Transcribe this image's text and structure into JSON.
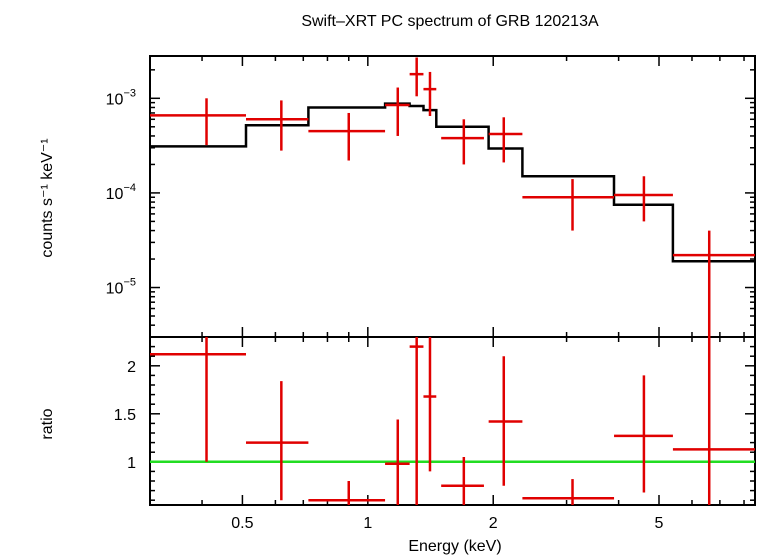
{
  "chart_data": {
    "type": "scatter",
    "title": "Swift–XRT PC spectrum of GRB 120213A",
    "xlabel": "Energy (keV)",
    "x_scale": "log",
    "xlim": [
      0.3,
      8.5
    ],
    "x_ticks": [
      {
        "value": 0.5,
        "label": "0.5"
      },
      {
        "value": 1,
        "label": "1"
      },
      {
        "value": 2,
        "label": "2"
      },
      {
        "value": 5,
        "label": "5"
      }
    ],
    "panels": [
      {
        "id": "spectrum",
        "ylabel": "counts s⁻¹ keV⁻¹",
        "y_scale": "log",
        "ylim": [
          3e-06,
          0.0028
        ],
        "y_ticks": [
          {
            "value": 0.001,
            "base": "10",
            "exp": "−3"
          },
          {
            "value": 0.0001,
            "base": "10",
            "exp": "−4"
          },
          {
            "value": 1e-05,
            "base": "10",
            "exp": "−5"
          }
        ],
        "data": [
          {
            "x": 0.41,
            "xlo": 0.3,
            "xhi": 0.51,
            "y": 0.00066,
            "ylo": 0.00032,
            "yhi": 0.001
          },
          {
            "x": 0.62,
            "xlo": 0.51,
            "xhi": 0.72,
            "y": 0.0006,
            "ylo": 0.00028,
            "yhi": 0.00095
          },
          {
            "x": 0.9,
            "xlo": 0.72,
            "xhi": 1.1,
            "y": 0.00045,
            "ylo": 0.00022,
            "yhi": 0.0007
          },
          {
            "x": 1.18,
            "xlo": 1.1,
            "xhi": 1.26,
            "y": 0.00085,
            "ylo": 0.0004,
            "yhi": 0.0013
          },
          {
            "x": 1.31,
            "xlo": 1.26,
            "xhi": 1.36,
            "y": 0.0018,
            "ylo": 0.00105,
            "yhi": 0.0027
          },
          {
            "x": 1.41,
            "xlo": 1.36,
            "xhi": 1.46,
            "y": 0.00125,
            "ylo": 0.00065,
            "yhi": 0.0019
          },
          {
            "x": 1.7,
            "xlo": 1.5,
            "xhi": 1.9,
            "y": 0.00038,
            "ylo": 0.0002,
            "yhi": 0.0006
          },
          {
            "x": 2.12,
            "xlo": 1.95,
            "xhi": 2.35,
            "y": 0.00042,
            "ylo": 0.00021,
            "yhi": 0.00063
          },
          {
            "x": 3.1,
            "xlo": 2.35,
            "xhi": 3.9,
            "y": 9e-05,
            "ylo": 4e-05,
            "yhi": 0.00014
          },
          {
            "x": 4.6,
            "xlo": 3.9,
            "xhi": 5.4,
            "y": 9.5e-05,
            "ylo": 5e-05,
            "yhi": 0.00015
          },
          {
            "x": 6.6,
            "xlo": 5.4,
            "xhi": 8.5,
            "y": 2.2e-05,
            "ylo": 2.6e-06,
            "yhi": 4e-05
          }
        ],
        "model": [
          {
            "x0": 0.3,
            "x1": 0.51,
            "y": 0.00031
          },
          {
            "x0": 0.51,
            "x1": 0.72,
            "y": 0.00052
          },
          {
            "x0": 0.72,
            "x1": 1.1,
            "y": 0.0008
          },
          {
            "x0": 1.1,
            "x1": 1.26,
            "y": 0.00088
          },
          {
            "x0": 1.26,
            "x1": 1.36,
            "y": 0.00083
          },
          {
            "x0": 1.36,
            "x1": 1.46,
            "y": 0.00075
          },
          {
            "x0": 1.46,
            "x1": 1.95,
            "y": 0.0005
          },
          {
            "x0": 1.95,
            "x1": 2.35,
            "y": 0.000295
          },
          {
            "x0": 2.35,
            "x1": 3.9,
            "y": 0.00015
          },
          {
            "x0": 3.9,
            "x1": 5.4,
            "y": 7.5e-05
          },
          {
            "x0": 5.4,
            "x1": 8.5,
            "y": 1.9e-05
          }
        ]
      },
      {
        "id": "ratio",
        "ylabel": "ratio",
        "y_scale": "linear",
        "ylim": [
          0.55,
          2.3
        ],
        "y_ticks": [
          {
            "value": 1,
            "label": "1"
          },
          {
            "value": 1.5,
            "label": "1.5"
          },
          {
            "value": 2,
            "label": "2"
          }
        ],
        "reference_line": 1,
        "data": [
          {
            "x": 0.41,
            "xlo": 0.3,
            "xhi": 0.51,
            "y": 2.12,
            "ylo": 1.0,
            "yhi": 2.3
          },
          {
            "x": 0.62,
            "xlo": 0.51,
            "xhi": 0.72,
            "y": 1.2,
            "ylo": 0.6,
            "yhi": 1.84
          },
          {
            "x": 0.9,
            "xlo": 0.72,
            "xhi": 1.1,
            "y": 0.6,
            "ylo": 0.55,
            "yhi": 0.8
          },
          {
            "x": 1.18,
            "xlo": 1.1,
            "xhi": 1.26,
            "y": 0.98,
            "ylo": 0.55,
            "yhi": 1.44
          },
          {
            "x": 1.31,
            "xlo": 1.26,
            "xhi": 1.36,
            "y": 2.2,
            "ylo": 0.55,
            "yhi": 2.3
          },
          {
            "x": 1.41,
            "xlo": 1.36,
            "xhi": 1.46,
            "y": 1.68,
            "ylo": 0.9,
            "yhi": 2.3
          },
          {
            "x": 1.7,
            "xlo": 1.5,
            "xhi": 1.9,
            "y": 0.75,
            "ylo": 0.55,
            "yhi": 1.05
          },
          {
            "x": 2.12,
            "xlo": 1.95,
            "xhi": 2.35,
            "y": 1.42,
            "ylo": 0.75,
            "yhi": 2.1
          },
          {
            "x": 3.1,
            "xlo": 2.35,
            "xhi": 3.9,
            "y": 0.62,
            "ylo": 0.55,
            "yhi": 0.82
          },
          {
            "x": 4.6,
            "xlo": 3.9,
            "xhi": 5.4,
            "y": 1.27,
            "ylo": 0.68,
            "yhi": 1.9
          },
          {
            "x": 6.6,
            "xlo": 5.4,
            "xhi": 8.5,
            "y": 1.13,
            "ylo": 0.55,
            "yhi": 2.3
          }
        ]
      }
    ],
    "colors": {
      "data": "#e00000",
      "model": "#000000",
      "reference": "#22dd22",
      "axes": "#000000"
    },
    "grid": false,
    "legend": "none"
  }
}
